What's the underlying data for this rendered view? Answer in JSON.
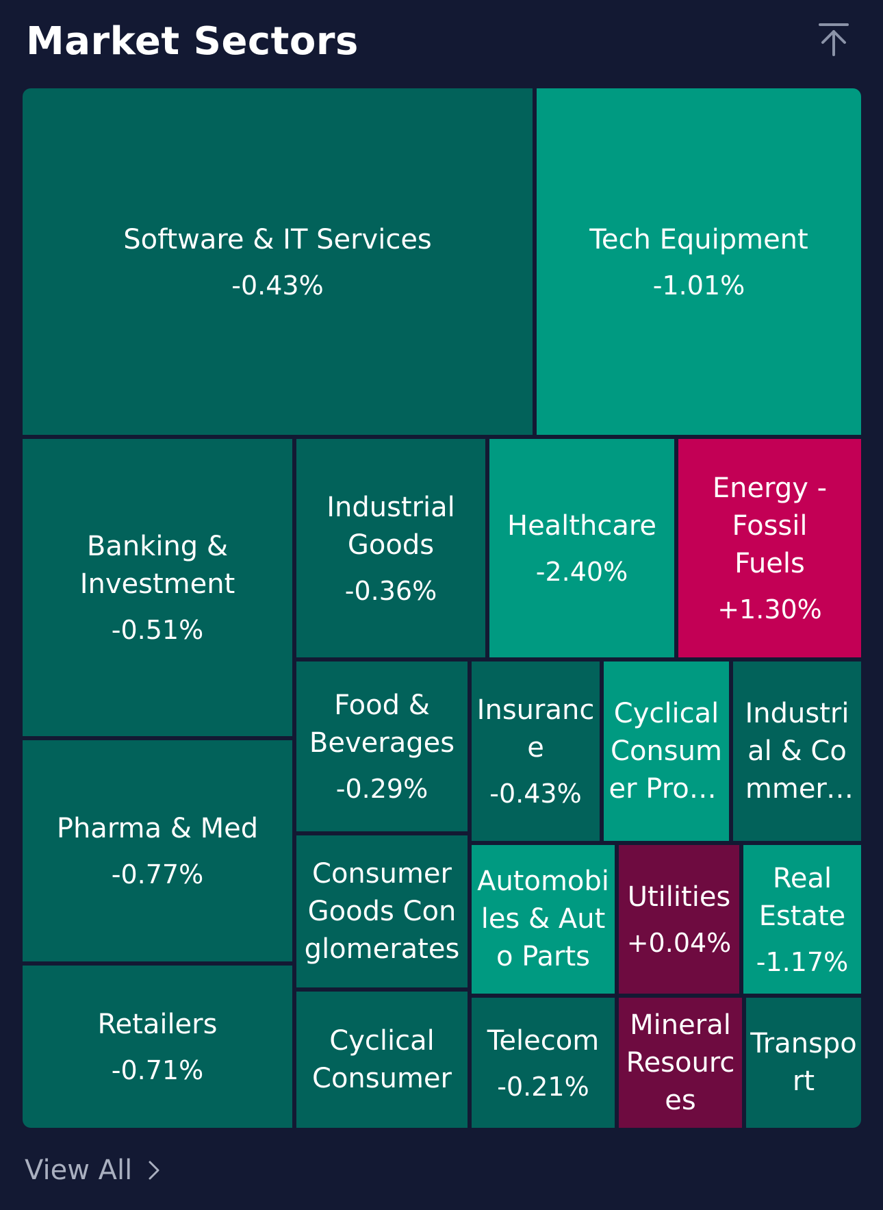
{
  "header": {
    "title": "Market Sectors",
    "scroll_top_icon": "arrow-up-to-top-icon"
  },
  "colors": {
    "background": "#131933",
    "dark_teal": "#02625A",
    "bright_teal": "#009A81",
    "magenta": "#C30055",
    "dark_magenta": "#6E0B40",
    "muted_text": "#AAB0C0"
  },
  "sectors": [
    {
      "name": "Software & IT Services",
      "change": "-0.43%"
    },
    {
      "name": "Tech Equipment",
      "change": "-1.01%"
    },
    {
      "name": "Banking & Investment",
      "change": "-0.51%"
    },
    {
      "name": "Industrial Goods",
      "change": "-0.36%"
    },
    {
      "name": "Healthcare",
      "change": "-2.40%"
    },
    {
      "name": "Energy - Fossil Fuels",
      "change": "+1.30%"
    },
    {
      "name": "Pharma & Med",
      "change": "-0.77%"
    },
    {
      "name": "Food & Beverages",
      "change": "-0.29%"
    },
    {
      "name": "Insurance",
      "change": "-0.43%"
    },
    {
      "name": "Cyclical Consumer Products",
      "change": ""
    },
    {
      "name": "Industrial & Commercial Services",
      "change": ""
    },
    {
      "name": "Consumer Goods Conglomerates",
      "change": ""
    },
    {
      "name": "Automobiles & Auto Parts",
      "change": ""
    },
    {
      "name": "Utilities",
      "change": "+0.04%"
    },
    {
      "name": "Real Estate",
      "change": "-1.17%"
    },
    {
      "name": "Retailers",
      "change": "-0.71%"
    },
    {
      "name": "Cyclical Consumer",
      "change": ""
    },
    {
      "name": "Telecom",
      "change": "-0.21%"
    },
    {
      "name": "Mineral Resources",
      "change": ""
    },
    {
      "name": "Transport",
      "change": ""
    }
  ],
  "footer": {
    "view_all_label": "View All",
    "chevron_icon": "chevron-right-icon"
  }
}
